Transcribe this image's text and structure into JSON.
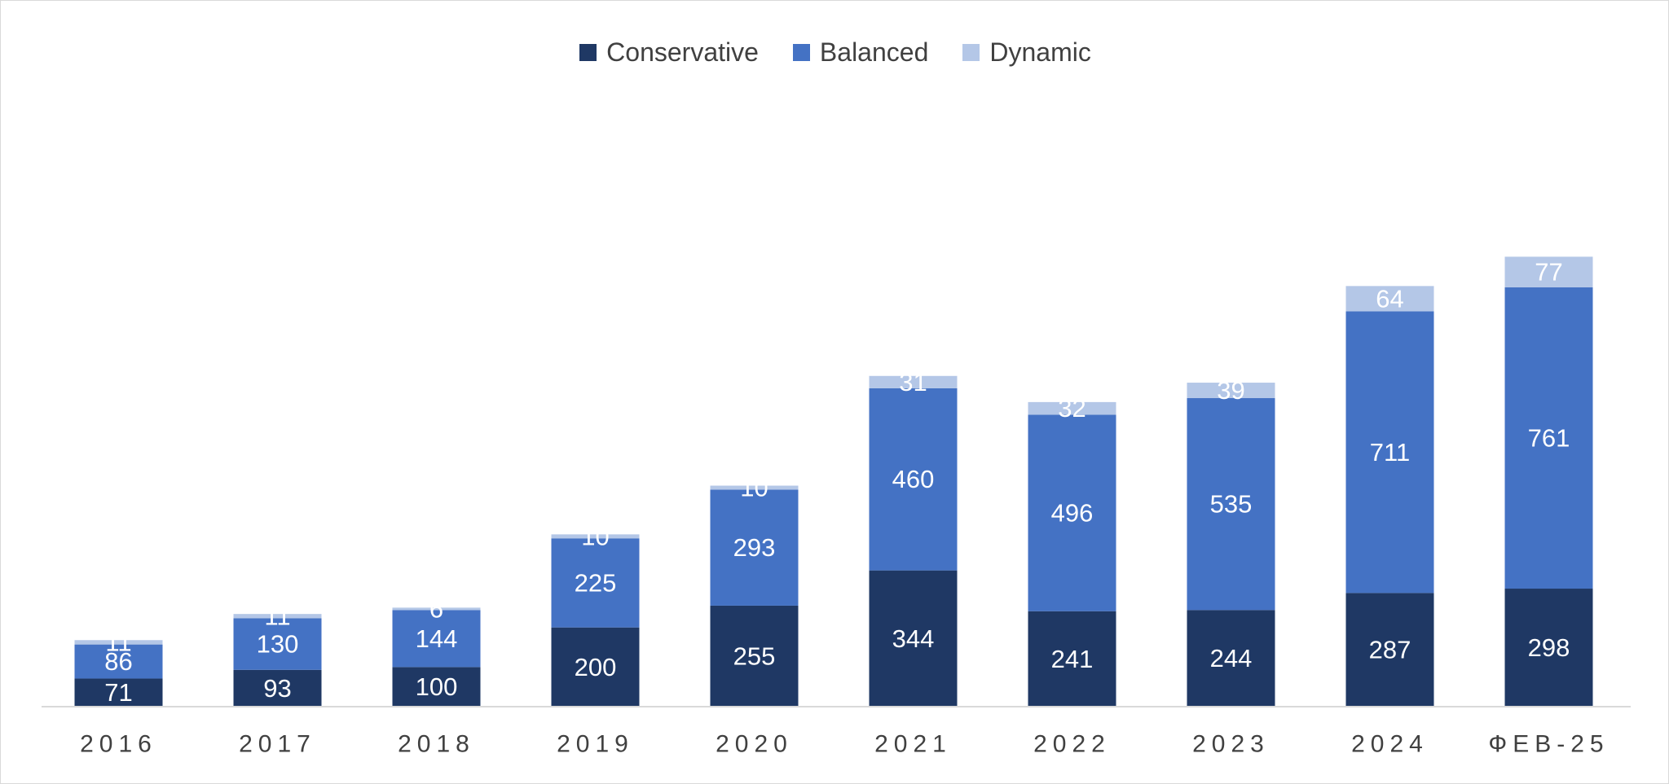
{
  "chart_data": {
    "type": "bar",
    "stacked": true,
    "categories": [
      "2016",
      "2017",
      "2018",
      "2019",
      "2020",
      "2021",
      "2022",
      "2023",
      "2024",
      "ФЕВ-25"
    ],
    "series": [
      {
        "name": "Conservative",
        "color": "#1F3864",
        "values": [
          71,
          93,
          100,
          200,
          255,
          344,
          241,
          244,
          287,
          298
        ]
      },
      {
        "name": "Balanced",
        "color": "#4472C4",
        "values": [
          86,
          130,
          144,
          225,
          293,
          460,
          496,
          535,
          711,
          761
        ]
      },
      {
        "name": "Dynamic",
        "color": "#B4C7E7",
        "values": [
          11,
          11,
          6,
          10,
          10,
          31,
          32,
          39,
          64,
          77
        ]
      }
    ],
    "title": "",
    "xlabel": "",
    "ylabel": "",
    "ylim": [
      0,
      1150
    ],
    "grid": false,
    "legend_position": "top-center",
    "data_labels": true
  }
}
